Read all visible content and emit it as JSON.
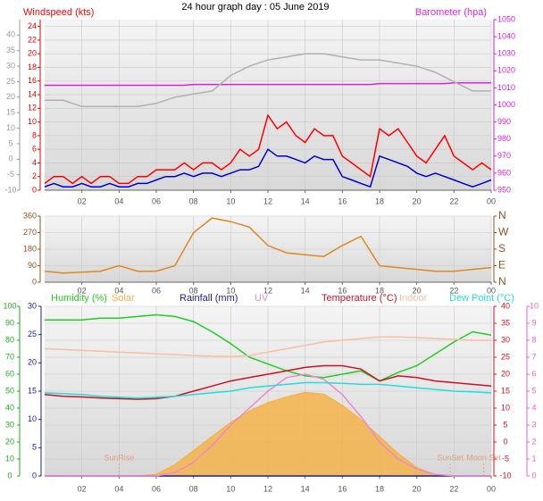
{
  "chart_data": [
    {
      "type": "line",
      "title": "24 hour graph day : 05 June 2019",
      "x": [
        0,
        0.5,
        1,
        1.5,
        2,
        2.5,
        3,
        3.5,
        4,
        4.5,
        5,
        5.5,
        6,
        6.5,
        7,
        7.5,
        8,
        8.5,
        9,
        9.5,
        10,
        10.5,
        11,
        11.5,
        12,
        12.5,
        13,
        13.5,
        14,
        14.5,
        15,
        15.5,
        16,
        16.5,
        17,
        17.5,
        18,
        18.5,
        19,
        19.5,
        20,
        20.5,
        21,
        21.5,
        22,
        22.5,
        23,
        23.5,
        24
      ],
      "xlim": [
        0,
        24
      ],
      "xticks": [
        {
          "value": 2,
          "label": "02"
        },
        {
          "value": 4,
          "label": "04"
        },
        {
          "value": 6,
          "label": "06"
        },
        {
          "value": 8,
          "label": "08"
        },
        10,
        12,
        14,
        16,
        18,
        20,
        22,
        {
          "value": 24,
          "label": "00"
        }
      ],
      "ylim": [
        0,
        25
      ],
      "yticks": [
        0,
        2,
        4,
        6,
        8,
        10,
        12,
        14,
        16,
        18,
        20,
        22,
        24
      ],
      "y2lim": [
        950,
        1050
      ],
      "y2ticks": [
        950,
        960,
        970,
        980,
        990,
        1000,
        1010,
        1020,
        1030,
        1040,
        1050
      ],
      "y3lim": [
        -10,
        45
      ],
      "y3ticks": [
        -10,
        -5,
        0,
        5,
        10,
        15,
        20,
        25,
        30,
        35,
        40
      ],
      "grid": true,
      "series": [
        {
          "name": "Windspeed (kts)",
          "color": "#ff0000",
          "axis": "y",
          "values": [
            1,
            2,
            2,
            1,
            2,
            1,
            2,
            2,
            1,
            1,
            2,
            2,
            3,
            3,
            3,
            4,
            3,
            4,
            4,
            3,
            4,
            6,
            5,
            6,
            11,
            9,
            10,
            8,
            7,
            9,
            8,
            8,
            5,
            4,
            3,
            2,
            9,
            8,
            9,
            7,
            5,
            4,
            6,
            8,
            5,
            4,
            3,
            4,
            3
          ]
        },
        {
          "color": "#0000cc",
          "axis": "y",
          "values": [
            0.5,
            1,
            0.5,
            0.5,
            1,
            0.5,
            0.5,
            1,
            0.5,
            0.5,
            1,
            1,
            1.5,
            2,
            2,
            2.5,
            2,
            2.5,
            2.5,
            2,
            2.5,
            3,
            3,
            3.5,
            6,
            5,
            5,
            4.5,
            4,
            5,
            4.5,
            4.5,
            2,
            1.5,
            1,
            0.5,
            5,
            4.5,
            4,
            3.5,
            2.5,
            2,
            2.5,
            2,
            1.5,
            1,
            0.5,
            1,
            1.5
          ]
        },
        {
          "name": "Barometer (hpa)",
          "color": "#dd22dd",
          "axis": "y2",
          "values": [
            1011.5,
            1011.5,
            1011.5,
            1011.5,
            1011.5,
            1011.5,
            1011.5,
            1011.5,
            1011.5,
            1011.5,
            1011.5,
            1011.5,
            1011.5,
            1011.5,
            1011.5,
            1011.5,
            1012,
            1012,
            1012,
            1012,
            1012,
            1012,
            1012,
            1012,
            1012,
            1012,
            1012,
            1012,
            1012,
            1012,
            1012,
            1012,
            1012,
            1012,
            1012,
            1012,
            1012.5,
            1012.5,
            1012.5,
            1012.5,
            1012.5,
            1012.5,
            1012.5,
            1012.5,
            1013,
            1013,
            1013,
            1013,
            1013
          ]
        },
        {
          "color": "#b0b0b0",
          "axis": "y3",
          "values": [
            19,
            19,
            19,
            18,
            17,
            17,
            17,
            17,
            17,
            17,
            17,
            17.5,
            18,
            19,
            20,
            20.5,
            21,
            21.5,
            22,
            24.5,
            27,
            28.5,
            30,
            31,
            32,
            32.5,
            33,
            33.5,
            34,
            34,
            34,
            33.5,
            33,
            32.5,
            32,
            32,
            32,
            31.5,
            31,
            30.5,
            30,
            29,
            28,
            26.5,
            25,
            23.5,
            22,
            22,
            22
          ]
        }
      ]
    },
    {
      "type": "line",
      "x": [
        0,
        1,
        2,
        3,
        4,
        5,
        6,
        7,
        8,
        9,
        10,
        11,
        12,
        13,
        14,
        15,
        16,
        17,
        18,
        19,
        20,
        21,
        22,
        23,
        24
      ],
      "xlim": [
        0,
        24
      ],
      "xticks": [
        {
          "value": 2,
          "label": "02"
        },
        {
          "value": 4,
          "label": "04"
        },
        {
          "value": 6,
          "label": "06"
        },
        {
          "value": 8,
          "label": "08"
        },
        10,
        12,
        14,
        16,
        18,
        20,
        22,
        {
          "value": 24,
          "label": "00"
        }
      ],
      "ylim": [
        0,
        360
      ],
      "yticks": [
        0,
        90,
        180,
        270,
        360
      ],
      "y2lim": [
        0,
        360
      ],
      "y2ticks": [
        {
          "value": 0,
          "label": "N"
        },
        {
          "value": 90,
          "label": "E"
        },
        {
          "value": 180,
          "label": "S"
        },
        {
          "value": 270,
          "label": "W"
        },
        {
          "value": 360,
          "label": "N"
        }
      ],
      "grid": true,
      "series": [
        {
          "color": "#dd8822",
          "axis": "y",
          "values": [
            60,
            50,
            55,
            60,
            90,
            60,
            60,
            90,
            270,
            350,
            330,
            300,
            200,
            160,
            150,
            140,
            200,
            250,
            90,
            80,
            70,
            60,
            60,
            70,
            80
          ]
        }
      ]
    },
    {
      "type": "line",
      "x": [
        0,
        1,
        2,
        3,
        4,
        5,
        6,
        7,
        8,
        9,
        10,
        11,
        12,
        13,
        14,
        15,
        16,
        17,
        18,
        19,
        20,
        21,
        22,
        23,
        24
      ],
      "xlim": [
        0,
        24
      ],
      "xticks": [
        {
          "value": 2,
          "label": "02"
        },
        {
          "value": 4,
          "label": "04"
        },
        {
          "value": 6,
          "label": "06"
        },
        {
          "value": 8,
          "label": "08"
        },
        10,
        12,
        14,
        16,
        18,
        20,
        22,
        {
          "value": 24,
          "label": "00"
        }
      ],
      "ylim": [
        0,
        100
      ],
      "yticks": [
        0,
        10,
        20,
        30,
        40,
        50,
        60,
        70,
        80,
        90,
        100
      ],
      "y2lim": [
        -10,
        40
      ],
      "y2ticks": [
        -10,
        -5,
        0,
        5,
        10,
        15,
        20,
        25,
        30,
        35,
        40
      ],
      "y3lim": [
        0,
        10
      ],
      "y3ticks": [
        0,
        1,
        2,
        3,
        4,
        5,
        6,
        7,
        8,
        9,
        10
      ],
      "y4lim": [
        0,
        30
      ],
      "y4ticks": [
        0,
        5,
        10,
        15,
        20,
        25,
        30
      ],
      "grid": true,
      "series": [
        {
          "name": "Humidity (%)",
          "color": "#22cc22",
          "axis": "y",
          "values": [
            92,
            92,
            92,
            93,
            93,
            94,
            95,
            94,
            91,
            85,
            78,
            70,
            66,
            62,
            59,
            58,
            60,
            62,
            56,
            61,
            65,
            72,
            79,
            85,
            83
          ]
        },
        {
          "name": "Solar",
          "color": "#f5b041",
          "axis": "y4",
          "fill": true,
          "values": [
            0,
            0,
            0,
            0,
            0,
            0,
            0.3,
            2,
            4.5,
            7,
            9.5,
            11.5,
            13,
            14,
            14.8,
            14.5,
            12.5,
            10,
            7,
            4,
            1.5,
            0.2,
            0,
            0,
            0
          ]
        },
        {
          "name": "Rainfall (mm)",
          "color": "#1c1c9c",
          "axis": "y4",
          "values": [
            0,
            0,
            0,
            0,
            0,
            0,
            0,
            0,
            0,
            0,
            0,
            0,
            0,
            0,
            0,
            0,
            0,
            0,
            0,
            0,
            0,
            0,
            0,
            0,
            0
          ]
        },
        {
          "name": "UV",
          "color": "#ee88cc",
          "axis": "y3",
          "values": [
            0,
            0,
            0,
            0,
            0,
            0,
            0,
            0.2,
            0.8,
            1.8,
            3,
            4,
            5,
            5.8,
            6,
            5.7,
            4.8,
            3.5,
            2,
            1,
            0.4,
            0.1,
            0,
            0,
            0
          ]
        },
        {
          "name": "Temperature (°C)",
          "color": "#cc1122",
          "axis": "y2",
          "values": [
            14,
            13.5,
            13.3,
            13,
            12.8,
            12.6,
            12.8,
            13.5,
            15,
            16.5,
            18,
            19,
            20,
            21,
            22,
            22.5,
            22.5,
            21.5,
            18,
            19.5,
            19,
            18,
            17.5,
            17,
            16.5
          ]
        },
        {
          "name": "Indoor",
          "color": "#f5c0a0",
          "axis": "y2",
          "values": [
            27.5,
            27.3,
            27,
            26.8,
            26.5,
            26.3,
            26,
            25.8,
            25.5,
            25.3,
            25.2,
            25.5,
            26.5,
            27.5,
            28.5,
            29.5,
            30,
            30.5,
            31,
            31,
            30.8,
            30.5,
            30.3,
            30,
            30
          ]
        },
        {
          "name": "Dew Point (°C)",
          "color": "#22dddd",
          "axis": "y2",
          "values": [
            14.5,
            14.3,
            14,
            13.5,
            13.2,
            13,
            13.2,
            13.5,
            14,
            14.5,
            15,
            16,
            16.5,
            17,
            17.5,
            17.5,
            17.3,
            17,
            17,
            16.5,
            16,
            15.5,
            15,
            14.8,
            14.5
          ]
        }
      ],
      "annotations": [
        {
          "text": "SunRise",
          "x": 4.0
        },
        {
          "text": "SunSet",
          "x": 21.8
        },
        {
          "text": "Moon Set",
          "x": 23.6
        }
      ]
    }
  ]
}
